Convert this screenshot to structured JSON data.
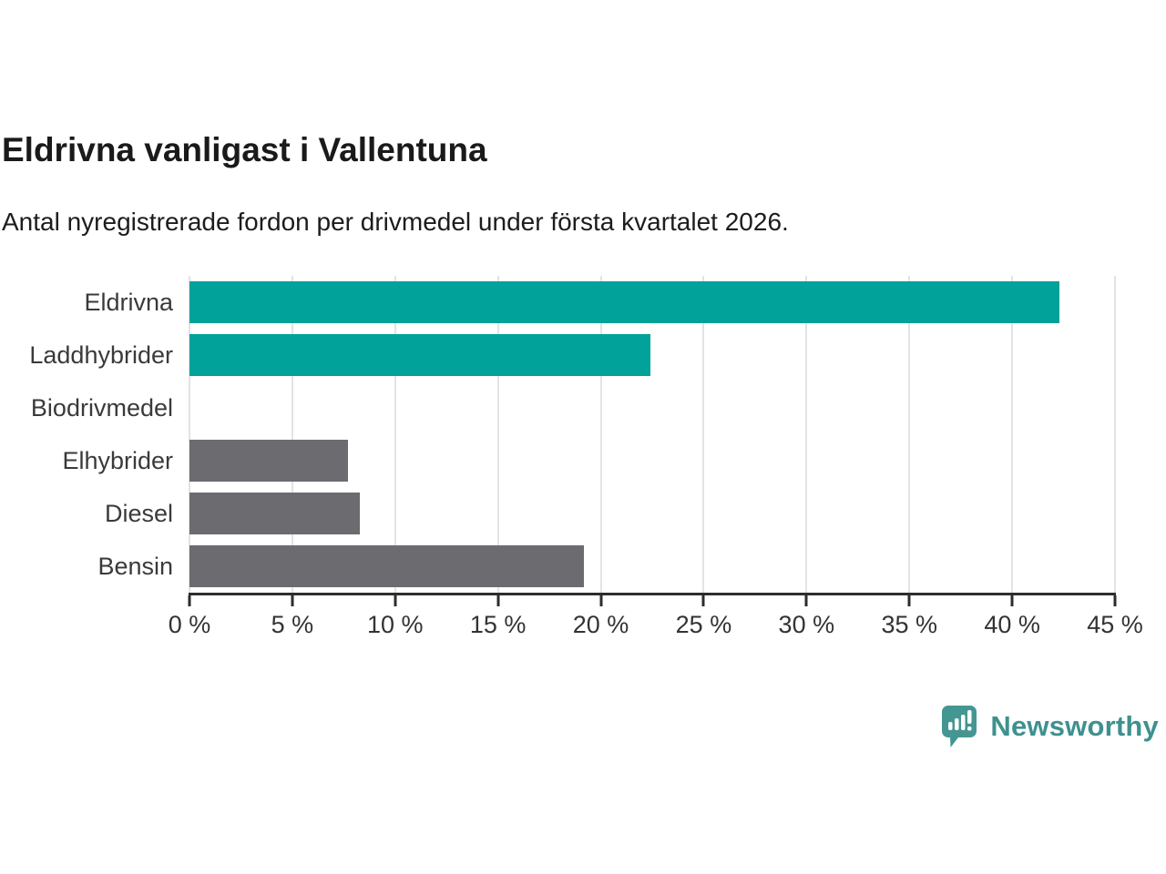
{
  "chart": {
    "title": "Eldrivna vanligast i Vallentuna",
    "subtitle": "Antal nyregistrerade fordon per drivmedel under första kvartalet 2026."
  },
  "brand": {
    "name": "Newsworthy",
    "icon": "newsworthy-speech-bubble-bar-chart-icon",
    "icon_color": "#449693",
    "text_color": "#3e918f"
  },
  "colors": {
    "accent_teal": "#00a29a",
    "neutral_gray": "#6b6b70",
    "gridline": "#e3e3e3",
    "axis": "#2d2d2d",
    "tick_text": "#333333",
    "category_text": "#3a3a3a"
  },
  "chart_data": {
    "type": "bar",
    "orientation": "horizontal",
    "title": "Eldrivna vanligast i Vallentuna",
    "subtitle": "Antal nyregistrerade fordon per drivmedel under första kvartalet 2026.",
    "categories": [
      "Eldrivna",
      "Laddhybrider",
      "Biodrivmedel",
      "Elhybrider",
      "Diesel",
      "Bensin"
    ],
    "values": [
      42.3,
      22.4,
      0,
      7.7,
      8.3,
      19.2
    ],
    "bar_colors": [
      "#00a29a",
      "#00a29a",
      "#6b6b70",
      "#6b6b70",
      "#6b6b70",
      "#6b6b70"
    ],
    "xlabel": "",
    "ylabel": "",
    "xlim": [
      0,
      45
    ],
    "x_ticks": [
      0,
      5,
      10,
      15,
      20,
      25,
      30,
      35,
      40,
      45
    ],
    "x_tick_labels": [
      "0 %",
      "5 %",
      "10 %",
      "15 %",
      "20 %",
      "25 %",
      "30 %",
      "35 %",
      "40 %",
      "45 %"
    ],
    "grid": "vertical",
    "legend": "none"
  }
}
